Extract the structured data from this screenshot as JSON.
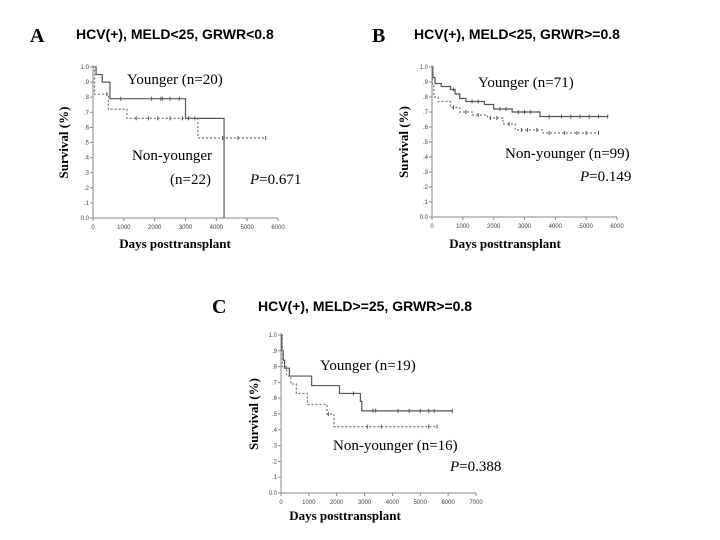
{
  "chart_data": [
    {
      "type": "line",
      "panel": "A",
      "title": "HCV(+), MELD<25, GRWR<0.8",
      "xlabel": "Days posttransplant",
      "ylabel": "Survival (%)",
      "xlim": [
        0,
        6000
      ],
      "xticks": [
        0,
        1000,
        2000,
        3000,
        4000,
        5000,
        6000
      ],
      "ylim": [
        0,
        1
      ],
      "yticks": [
        "0.0",
        ".1",
        ".2",
        ".3",
        ".4",
        ".5",
        ".6",
        ".7",
        ".8",
        ".9",
        "1.0"
      ],
      "series": [
        {
          "name": "Younger (n=20)",
          "style": "solid",
          "steps": [
            [
              0,
              1.0
            ],
            [
              100,
              0.95
            ],
            [
              300,
              0.9
            ],
            [
              550,
              0.79
            ],
            [
              3000,
              0.66
            ],
            [
              4250,
              0.0
            ]
          ],
          "end": 4250,
          "censored": [
            900,
            1900,
            2200,
            2250,
            2500,
            2800
          ]
        },
        {
          "name": "Non-younger (n=22)",
          "style": "dotted",
          "steps": [
            [
              0,
              1.0
            ],
            [
              50,
              0.82
            ],
            [
              500,
              0.72
            ],
            [
              1100,
              0.66
            ],
            [
              3400,
              0.53
            ]
          ],
          "end": 5600,
          "censored": [
            450,
            1400,
            1800,
            2100,
            2500,
            2900,
            3100,
            3300,
            4200,
            4700,
            5600
          ]
        }
      ],
      "annotations": {
        "younger": "Younger (n=20)",
        "nonyounger": "Non-younger",
        "nonyounger2": "(n=22)",
        "p": "P",
        "pval": "=0.671"
      }
    },
    {
      "type": "line",
      "panel": "B",
      "title": "HCV(+), MELD<25, GRWR>=0.8",
      "xlabel": "Days posttransplant",
      "ylabel": "Survival (%)",
      "xlim": [
        0,
        6000
      ],
      "xticks": [
        0,
        1000,
        2000,
        3000,
        4000,
        5000,
        6000
      ],
      "ylim": [
        0,
        1
      ],
      "yticks": [
        "0.0",
        ".1",
        ".2",
        ".3",
        ".4",
        ".5",
        ".6",
        ".7",
        ".8",
        ".9",
        "1.0"
      ],
      "series": [
        {
          "name": "Younger (n=71)",
          "style": "solid",
          "steps": [
            [
              0,
              1.0
            ],
            [
              30,
              0.93
            ],
            [
              100,
              0.89
            ],
            [
              300,
              0.87
            ],
            [
              600,
              0.85
            ],
            [
              750,
              0.82
            ],
            [
              900,
              0.79
            ],
            [
              1100,
              0.77
            ],
            [
              1700,
              0.75
            ],
            [
              2000,
              0.72
            ],
            [
              2600,
              0.7
            ],
            [
              3500,
              0.67
            ]
          ],
          "end": 5700,
          "censored": [
            700,
            1300,
            1500,
            2200,
            2400,
            2800,
            3000,
            3200,
            3800,
            4200,
            4500,
            4800,
            5100,
            5400,
            5700
          ]
        },
        {
          "name": "Non-younger (n=99)",
          "style": "dotted",
          "steps": [
            [
              0,
              1.0
            ],
            [
              20,
              0.88
            ],
            [
              60,
              0.8
            ],
            [
              200,
              0.77
            ],
            [
              600,
              0.73
            ],
            [
              900,
              0.7
            ],
            [
              1300,
              0.68
            ],
            [
              1800,
              0.66
            ],
            [
              2300,
              0.62
            ],
            [
              2700,
              0.58
            ],
            [
              3600,
              0.56
            ]
          ],
          "end": 5400,
          "censored": [
            700,
            1100,
            1500,
            1900,
            2100,
            2500,
            2900,
            3100,
            3400,
            3800,
            4300,
            4700,
            5000,
            5400
          ]
        }
      ],
      "annotations": {
        "younger": "Younger (n=71)",
        "nonyounger": "Non-younger (n=99)",
        "p": "P",
        "pval": "=0.149"
      }
    },
    {
      "type": "line",
      "panel": "C",
      "title": "HCV(+), MELD>=25, GRWR>=0.8",
      "xlabel": "Days posttransplant",
      "ylabel": "Survival (%)",
      "xlim": [
        0,
        7000
      ],
      "xticks": [
        0,
        1000,
        2000,
        3000,
        4000,
        5000,
        6000,
        7000
      ],
      "ylim": [
        0,
        1
      ],
      "yticks": [
        "0.0",
        ".1",
        ".2",
        ".3",
        ".4",
        ".5",
        ".6",
        ".7",
        ".8",
        ".9",
        "1.0"
      ],
      "series": [
        {
          "name": "Younger (n=19)",
          "style": "solid",
          "steps": [
            [
              0,
              1.0
            ],
            [
              30,
              0.9
            ],
            [
              80,
              0.84
            ],
            [
              130,
              0.79
            ],
            [
              300,
              0.74
            ],
            [
              1100,
              0.68
            ],
            [
              2100,
              0.63
            ],
            [
              2850,
              0.58
            ],
            [
              2900,
              0.52
            ]
          ],
          "end": 6150,
          "censored": [
            2600,
            3300,
            3400,
            4200,
            4600,
            5000,
            5300,
            5500,
            6150
          ]
        },
        {
          "name": "Non-younger (n=16)",
          "style": "dotted",
          "steps": [
            [
              0,
              1.0
            ],
            [
              50,
              0.8
            ],
            [
              200,
              0.74
            ],
            [
              350,
              0.69
            ],
            [
              550,
              0.63
            ],
            [
              950,
              0.56
            ],
            [
              1650,
              0.5
            ],
            [
              1900,
              0.42
            ]
          ],
          "end": 5600,
          "censored": [
            1700,
            3100,
            3600,
            5300,
            5600
          ]
        }
      ],
      "annotations": {
        "younger": "Younger (n=19)",
        "nonyounger": "Non-younger (n=16)",
        "p": "P",
        "pval": "=0.388"
      }
    }
  ]
}
